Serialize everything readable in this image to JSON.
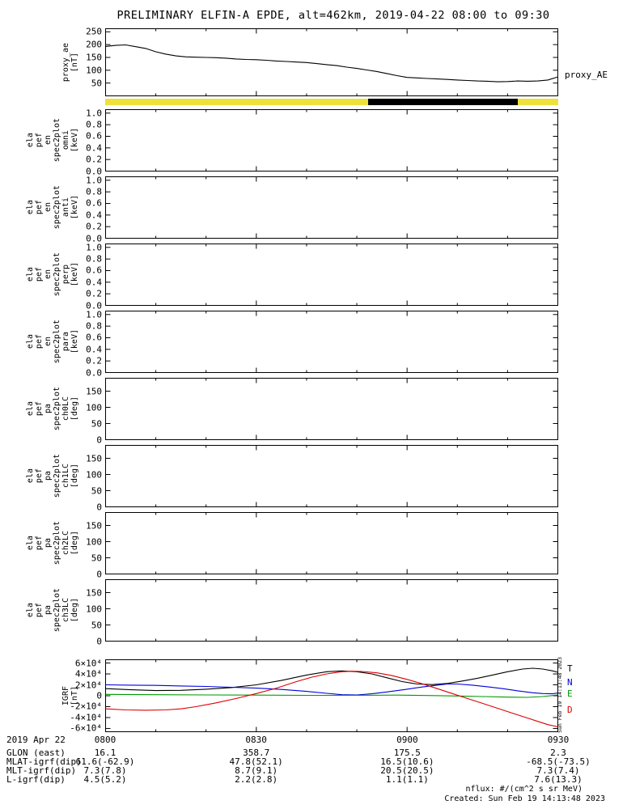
{
  "title": "PRELIMINARY ELFIN-A EPDE, alt=462km, 2019-04-22 08:00 to 09:30",
  "right_labels": {
    "proxy": "proxy_AE",
    "igrf": [
      {
        "label": "T",
        "color": "#000000"
      },
      {
        "label": "N",
        "color": "#0000dd"
      },
      {
        "label": "E",
        "color": "#009900"
      },
      {
        "label": "D",
        "color": "#dd0000"
      }
    ]
  },
  "status_bar": {
    "base_color": "#efe13d",
    "segments": [
      {
        "start": 0.58,
        "end": 0.911,
        "color": "#000000"
      }
    ]
  },
  "x_axis": {
    "date_label": "2019 Apr 22",
    "tick_labels": [
      "0800",
      "0830",
      "0900",
      "0930"
    ],
    "minutes_span": 90,
    "major_step_min": 30,
    "minor_step_min": 10
  },
  "footer_rows": [
    {
      "label": "GLON (east)",
      "values": [
        "16.1",
        "358.7",
        "175.5",
        "2.3"
      ]
    },
    {
      "label": "MLAT-igrf(dip)",
      "values": [
        "61.6(-62.9)",
        "47.8(52.1)",
        "16.5(10.6)",
        "-68.5(-73.5)"
      ]
    },
    {
      "label": "MLT-igrf(dip)",
      "values": [
        "7.3(7.8)",
        "8.7(9.1)",
        "20.5(20.5)",
        "7.3(7.4)"
      ]
    },
    {
      "label": "L-igrf(dip)",
      "values": [
        "4.5(5.2)",
        "2.2(2.8)",
        "1.1(1.1)",
        "7.6(13.3)"
      ]
    }
  ],
  "notes": {
    "nflux": "nflux: #/(cm^2 s sr MeV)",
    "created": "Created: Sun Feb 19 14:13:48 2023",
    "side_timestamp": "Sun Feb 19 14:13:48 2023"
  },
  "chart_data": [
    {
      "id": "proxy_ae",
      "type": "line",
      "ylabel_words": [
        "proxy_ae",
        "[nT]"
      ],
      "ylim": [
        0,
        262
      ],
      "yticks": [
        {
          "v": 50,
          "label": "50"
        },
        {
          "v": 100,
          "label": "100"
        },
        {
          "v": 150,
          "label": "150"
        },
        {
          "v": 200,
          "label": "200"
        },
        {
          "v": 250,
          "label": "250"
        }
      ],
      "series": [
        {
          "name": "proxy_AE",
          "color": "#000000",
          "points": [
            [
              0,
              193
            ],
            [
              2,
              197
            ],
            [
              4,
              199
            ],
            [
              6,
              192
            ],
            [
              8,
              185
            ],
            [
              10,
              172
            ],
            [
              12,
              163
            ],
            [
              14,
              156
            ],
            [
              16,
              152
            ],
            [
              18,
              151
            ],
            [
              20,
              150
            ],
            [
              22,
              149
            ],
            [
              24,
              147
            ],
            [
              26,
              144
            ],
            [
              28,
              142
            ],
            [
              30,
              141
            ],
            [
              32,
              139
            ],
            [
              34,
              136
            ],
            [
              36,
              134
            ],
            [
              38,
              132
            ],
            [
              40,
              130
            ],
            [
              42,
              126
            ],
            [
              44,
              122
            ],
            [
              46,
              118
            ],
            [
              48,
              112
            ],
            [
              50,
              107
            ],
            [
              52,
              101
            ],
            [
              54,
              95
            ],
            [
              56,
              87
            ],
            [
              58,
              79
            ],
            [
              60,
              72
            ],
            [
              62,
              70
            ],
            [
              64,
              68
            ],
            [
              66,
              66
            ],
            [
              68,
              64
            ],
            [
              70,
              62
            ],
            [
              72,
              60
            ],
            [
              74,
              58
            ],
            [
              76,
              57
            ],
            [
              78,
              55
            ],
            [
              80,
              56
            ],
            [
              82,
              58
            ],
            [
              84,
              57
            ],
            [
              86,
              58
            ],
            [
              88,
              62
            ],
            [
              90,
              74
            ]
          ]
        }
      ]
    },
    {
      "id": "en_omni",
      "type": "line",
      "ylabel_words": [
        "ela",
        "pef",
        "en",
        "spec2plot",
        "omni",
        "[keV]"
      ],
      "ylim": [
        0,
        1.06
      ],
      "yticks": [
        {
          "v": 0.0,
          "label": "0.0"
        },
        {
          "v": 0.2,
          "label": "0.2"
        },
        {
          "v": 0.4,
          "label": "0.4"
        },
        {
          "v": 0.6,
          "label": "0.6"
        },
        {
          "v": 0.8,
          "label": "0.8"
        },
        {
          "v": 1.0,
          "label": "1.0"
        }
      ],
      "series": []
    },
    {
      "id": "en_anti",
      "type": "line",
      "ylabel_words": [
        "ela",
        "pef",
        "en",
        "spec2plot",
        "anti",
        "[keV]"
      ],
      "ylim": [
        0,
        1.06
      ],
      "yticks": [
        {
          "v": 0.0,
          "label": "0.0"
        },
        {
          "v": 0.2,
          "label": "0.2"
        },
        {
          "v": 0.4,
          "label": "0.4"
        },
        {
          "v": 0.6,
          "label": "0.6"
        },
        {
          "v": 0.8,
          "label": "0.8"
        },
        {
          "v": 1.0,
          "label": "1.0"
        }
      ],
      "series": []
    },
    {
      "id": "en_perp",
      "type": "line",
      "ylabel_words": [
        "ela",
        "pef",
        "en",
        "spec2plot",
        "perp",
        "[keV]"
      ],
      "ylim": [
        0,
        1.06
      ],
      "yticks": [
        {
          "v": 0.0,
          "label": "0.0"
        },
        {
          "v": 0.2,
          "label": "0.2"
        },
        {
          "v": 0.4,
          "label": "0.4"
        },
        {
          "v": 0.6,
          "label": "0.6"
        },
        {
          "v": 0.8,
          "label": "0.8"
        },
        {
          "v": 1.0,
          "label": "1.0"
        }
      ],
      "series": []
    },
    {
      "id": "en_para",
      "type": "line",
      "ylabel_words": [
        "ela",
        "pef",
        "en",
        "spec2plot",
        "para",
        "[keV]"
      ],
      "ylim": [
        0,
        1.06
      ],
      "yticks": [
        {
          "v": 0.0,
          "label": "0.0"
        },
        {
          "v": 0.2,
          "label": "0.2"
        },
        {
          "v": 0.4,
          "label": "0.4"
        },
        {
          "v": 0.6,
          "label": "0.6"
        },
        {
          "v": 0.8,
          "label": "0.8"
        },
        {
          "v": 1.0,
          "label": "1.0"
        }
      ],
      "series": []
    },
    {
      "id": "pa_ch0lc",
      "type": "line",
      "ylabel_words": [
        "ela",
        "pef",
        "pa",
        "spec2plot",
        "ch0LC",
        "[deg]"
      ],
      "ylim": [
        0,
        190
      ],
      "yticks": [
        {
          "v": 0,
          "label": "0"
        },
        {
          "v": 50,
          "label": "50"
        },
        {
          "v": 100,
          "label": "100"
        },
        {
          "v": 150,
          "label": "150"
        }
      ],
      "series": []
    },
    {
      "id": "pa_ch1lc",
      "type": "line",
      "ylabel_words": [
        "ela",
        "pef",
        "pa",
        "spec2plot",
        "ch1LC",
        "[deg]"
      ],
      "ylim": [
        0,
        190
      ],
      "yticks": [
        {
          "v": 0,
          "label": "0"
        },
        {
          "v": 50,
          "label": "50"
        },
        {
          "v": 100,
          "label": "100"
        },
        {
          "v": 150,
          "label": "150"
        }
      ],
      "series": []
    },
    {
      "id": "pa_ch2lc",
      "type": "line",
      "ylabel_words": [
        "ela",
        "pef",
        "pa",
        "spec2plot",
        "ch2LC",
        "[deg]"
      ],
      "ylim": [
        0,
        190
      ],
      "yticks": [
        {
          "v": 0,
          "label": "0"
        },
        {
          "v": 50,
          "label": "50"
        },
        {
          "v": 100,
          "label": "100"
        },
        {
          "v": 150,
          "label": "150"
        }
      ],
      "series": []
    },
    {
      "id": "pa_ch3lc",
      "type": "line",
      "ylabel_words": [
        "ela",
        "pef",
        "pa",
        "spec2plot",
        "ch3LC",
        "[deg]"
      ],
      "ylim": [
        0,
        190
      ],
      "yticks": [
        {
          "v": 0,
          "label": "0"
        },
        {
          "v": 50,
          "label": "50"
        },
        {
          "v": 100,
          "label": "100"
        },
        {
          "v": 150,
          "label": "150"
        }
      ],
      "series": []
    },
    {
      "id": "igrf",
      "type": "line",
      "ylabel_words": [
        "IGRF",
        "[nT]"
      ],
      "ylim": [
        -66000,
        66000
      ],
      "yticks": [
        {
          "v": -60000,
          "label": "-6×10⁴"
        },
        {
          "v": -40000,
          "label": "-4×10⁴"
        },
        {
          "v": -20000,
          "label": "-2×10⁴"
        },
        {
          "v": 0,
          "label": "0"
        },
        {
          "v": 20000,
          "label": "2×10⁴"
        },
        {
          "v": 40000,
          "label": "4×10⁴"
        },
        {
          "v": 60000,
          "label": "6×10⁴"
        }
      ],
      "series": [
        {
          "name": "T",
          "color": "#000000",
          "points": [
            [
              0,
              13000
            ],
            [
              5,
              11000
            ],
            [
              10,
              9500
            ],
            [
              15,
              10000
            ],
            [
              20,
              12000
            ],
            [
              25,
              15000
            ],
            [
              30,
              20000
            ],
            [
              35,
              28000
            ],
            [
              40,
              38000
            ],
            [
              44,
              44000
            ],
            [
              47,
              45500
            ],
            [
              50,
              44000
            ],
            [
              53,
              40000
            ],
            [
              56,
              33000
            ],
            [
              59,
              26000
            ],
            [
              62,
              21500
            ],
            [
              65,
              20500
            ],
            [
              68,
              22500
            ],
            [
              71,
              27000
            ],
            [
              74,
              32000
            ],
            [
              77,
              38000
            ],
            [
              80,
              44000
            ],
            [
              83,
              49000
            ],
            [
              85,
              50500
            ],
            [
              87,
              49000
            ],
            [
              89,
              45500
            ],
            [
              90,
              43000
            ]
          ]
        },
        {
          "name": "N",
          "color": "#0000dd",
          "points": [
            [
              0,
              20000
            ],
            [
              5,
              19500
            ],
            [
              10,
              19000
            ],
            [
              15,
              18000
            ],
            [
              20,
              17000
            ],
            [
              25,
              15500
            ],
            [
              30,
              14000
            ],
            [
              35,
              11500
            ],
            [
              40,
              8000
            ],
            [
              44,
              4500
            ],
            [
              47,
              2000
            ],
            [
              50,
              1500
            ],
            [
              53,
              3500
            ],
            [
              56,
              7000
            ],
            [
              60,
              12000
            ],
            [
              63,
              16000
            ],
            [
              66,
              19500
            ],
            [
              68,
              21500
            ],
            [
              70,
              21500
            ],
            [
              73,
              19500
            ],
            [
              76,
              16500
            ],
            [
              79,
              13000
            ],
            [
              82,
              9000
            ],
            [
              85,
              5500
            ],
            [
              87,
              4000
            ],
            [
              89,
              3500
            ],
            [
              90,
              5000
            ]
          ]
        },
        {
          "name": "E",
          "color": "#009900",
          "points": [
            [
              0,
              2500
            ],
            [
              10,
              2000
            ],
            [
              20,
              1500
            ],
            [
              30,
              1200
            ],
            [
              40,
              800
            ],
            [
              50,
              800
            ],
            [
              58,
              1200
            ],
            [
              64,
              500
            ],
            [
              70,
              -500
            ],
            [
              75,
              -1500
            ],
            [
              80,
              -2500
            ],
            [
              84,
              -3000
            ],
            [
              87,
              -1500
            ],
            [
              89,
              500
            ],
            [
              90,
              1500
            ]
          ]
        },
        {
          "name": "D",
          "color": "#dd0000",
          "points": [
            [
              0,
              -24000
            ],
            [
              4,
              -26000
            ],
            [
              8,
              -26500
            ],
            [
              12,
              -26000
            ],
            [
              15,
              -24000
            ],
            [
              18,
              -20000
            ],
            [
              22,
              -13000
            ],
            [
              26,
              -5000
            ],
            [
              30,
              4000
            ],
            [
              34,
              14000
            ],
            [
              38,
              26000
            ],
            [
              41,
              34000
            ],
            [
              44,
              40000
            ],
            [
              47,
              44000
            ],
            [
              49,
              45000
            ],
            [
              51,
              44500
            ],
            [
              54,
              42000
            ],
            [
              57,
              37000
            ],
            [
              60,
              30000
            ],
            [
              63,
              22000
            ],
            [
              66,
              13000
            ],
            [
              69,
              4000
            ],
            [
              72,
              -5000
            ],
            [
              75,
              -14000
            ],
            [
              78,
              -23000
            ],
            [
              81,
              -32000
            ],
            [
              84,
              -41000
            ],
            [
              86,
              -47000
            ],
            [
              88,
              -53000
            ],
            [
              90,
              -57000
            ]
          ]
        }
      ]
    }
  ]
}
